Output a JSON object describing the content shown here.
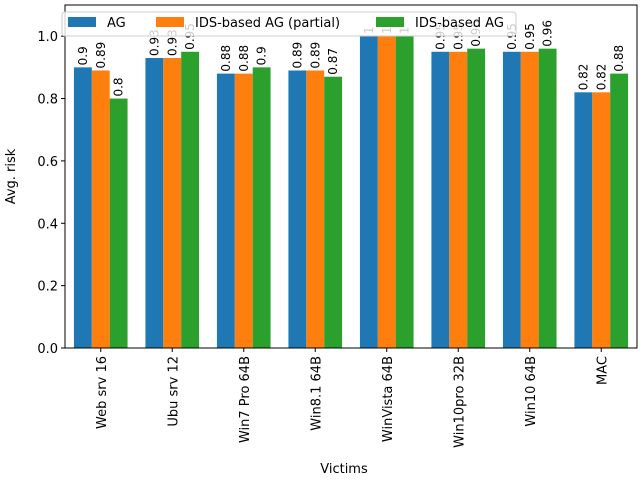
{
  "chart_data": {
    "type": "bar",
    "title": "",
    "xlabel": "Victims",
    "ylabel": "Avg. risk",
    "ylim": [
      0,
      1.1
    ],
    "yticks": [
      0.0,
      0.2,
      0.4,
      0.6,
      0.8,
      1.0
    ],
    "ytick_labels": [
      "0.0",
      "0.2",
      "0.4",
      "0.6",
      "0.8",
      "1.0"
    ],
    "categories": [
      "Web srv 16",
      "Ubu srv 12",
      "Win7 Pro 64B",
      "Win8.1 64B",
      "WinVista 64B",
      "Win10pro 32B",
      "Win10 64B",
      "MAC"
    ],
    "series": [
      {
        "name": "AG",
        "color": "#1f77b4",
        "values": [
          0.9,
          0.93,
          0.88,
          0.89,
          1.0,
          0.95,
          0.95,
          0.82
        ],
        "labels": [
          "0.9",
          "0.93",
          "0.88",
          "0.89",
          "1",
          "0.95",
          "0.95",
          "0.82"
        ]
      },
      {
        "name": "IDS-based AG (partial)",
        "color": "#ff7f0e",
        "values": [
          0.89,
          0.93,
          0.88,
          0.89,
          1.0,
          0.95,
          0.95,
          0.82
        ],
        "labels": [
          "0.89",
          "0.93",
          "0.88",
          "0.89",
          "1",
          "0.95",
          "0.95",
          "0.82"
        ]
      },
      {
        "name": "IDS-based AG",
        "color": "#2ca02c",
        "values": [
          0.8,
          0.95,
          0.9,
          0.87,
          1.0,
          0.96,
          0.96,
          0.88
        ],
        "labels": [
          "0.8",
          "0.95",
          "0.9",
          "0.87",
          "1",
          "0.96",
          "0.96",
          "0.88"
        ]
      }
    ],
    "legend_placement": "top",
    "grid": false
  }
}
